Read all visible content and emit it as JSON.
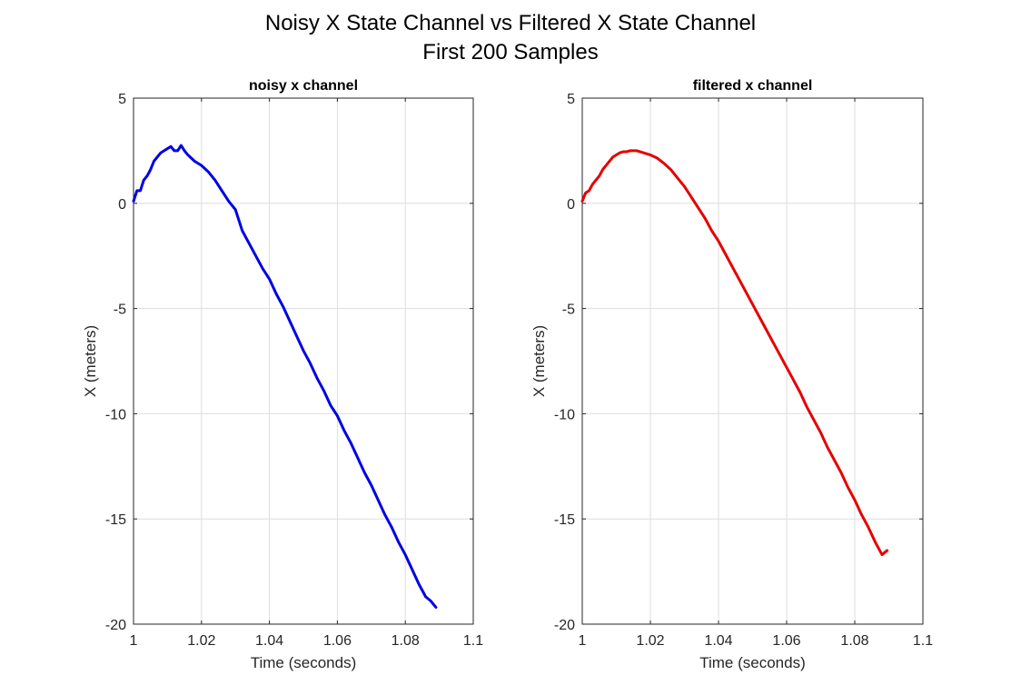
{
  "figure": {
    "title_line1": "Noisy X State Channel vs Filtered X State Channel",
    "title_line2": "First 200 Samples"
  },
  "chart_data": [
    {
      "type": "line",
      "title": "noisy x channel",
      "xlabel": "Time (seconds)",
      "ylabel": "X (meters)",
      "xlim": [
        1,
        1.1
      ],
      "ylim": [
        -20,
        5
      ],
      "xticks": [
        "1",
        "1.02",
        "1.04",
        "1.06",
        "1.08",
        "1.1"
      ],
      "yticks": [
        "-20",
        "-15",
        "-10",
        "-5",
        "0",
        "5"
      ],
      "grid": true,
      "series": [
        {
          "color": "#0000e6",
          "x": [
            1.0,
            1.001,
            1.002,
            1.003,
            1.004,
            1.005,
            1.006,
            1.007,
            1.008,
            1.009,
            1.01,
            1.011,
            1.012,
            1.013,
            1.014,
            1.015,
            1.016,
            1.018,
            1.02,
            1.022,
            1.024,
            1.026,
            1.028,
            1.03,
            1.031,
            1.032,
            1.034,
            1.036,
            1.038,
            1.04,
            1.042,
            1.044,
            1.046,
            1.048,
            1.05,
            1.052,
            1.054,
            1.056,
            1.058,
            1.06,
            1.062,
            1.064,
            1.066,
            1.068,
            1.07,
            1.072,
            1.074,
            1.076,
            1.078,
            1.08,
            1.082,
            1.084,
            1.086,
            1.0875,
            1.089
          ],
          "y": [
            0.1,
            0.6,
            0.6,
            1.1,
            1.3,
            1.6,
            2.0,
            2.2,
            2.4,
            2.5,
            2.6,
            2.7,
            2.5,
            2.5,
            2.75,
            2.5,
            2.3,
            2.0,
            1.8,
            1.5,
            1.1,
            0.6,
            0.1,
            -0.3,
            -0.8,
            -1.3,
            -1.9,
            -2.5,
            -3.1,
            -3.6,
            -4.3,
            -4.9,
            -5.6,
            -6.3,
            -7.0,
            -7.6,
            -8.3,
            -8.9,
            -9.6,
            -10.1,
            -10.8,
            -11.4,
            -12.1,
            -12.8,
            -13.4,
            -14.1,
            -14.8,
            -15.4,
            -16.1,
            -16.7,
            -17.4,
            -18.1,
            -18.7,
            -18.9,
            -19.2
          ]
        }
      ]
    },
    {
      "type": "line",
      "title": "filtered x channel",
      "xlabel": "Time (seconds)",
      "ylabel": "X (meters)",
      "xlim": [
        1,
        1.1
      ],
      "ylim": [
        -20,
        5
      ],
      "xticks": [
        "1",
        "1.02",
        "1.04",
        "1.06",
        "1.08",
        "1.1"
      ],
      "yticks": [
        "-20",
        "-15",
        "-10",
        "-5",
        "0",
        "5"
      ],
      "grid": true,
      "series": [
        {
          "color": "#e60000",
          "x": [
            1.0,
            1.001,
            1.002,
            1.003,
            1.004,
            1.005,
            1.006,
            1.007,
            1.008,
            1.009,
            1.01,
            1.011,
            1.012,
            1.013,
            1.014,
            1.015,
            1.016,
            1.018,
            1.02,
            1.022,
            1.024,
            1.026,
            1.028,
            1.03,
            1.032,
            1.034,
            1.036,
            1.038,
            1.04,
            1.042,
            1.044,
            1.046,
            1.048,
            1.05,
            1.052,
            1.054,
            1.056,
            1.058,
            1.06,
            1.062,
            1.064,
            1.066,
            1.068,
            1.07,
            1.072,
            1.074,
            1.076,
            1.078,
            1.08,
            1.082,
            1.084,
            1.086,
            1.088,
            1.0895
          ],
          "y": [
            0.1,
            0.5,
            0.6,
            0.9,
            1.1,
            1.3,
            1.6,
            1.8,
            2.0,
            2.2,
            2.3,
            2.4,
            2.45,
            2.45,
            2.5,
            2.5,
            2.5,
            2.4,
            2.3,
            2.15,
            1.9,
            1.6,
            1.2,
            0.8,
            0.3,
            -0.2,
            -0.7,
            -1.3,
            -1.8,
            -2.4,
            -3.0,
            -3.6,
            -4.2,
            -4.8,
            -5.4,
            -6.0,
            -6.6,
            -7.2,
            -7.8,
            -8.4,
            -9.0,
            -9.7,
            -10.3,
            -10.9,
            -11.6,
            -12.2,
            -12.8,
            -13.5,
            -14.1,
            -14.8,
            -15.4,
            -16.1,
            -16.7,
            -16.5
          ]
        }
      ]
    }
  ]
}
